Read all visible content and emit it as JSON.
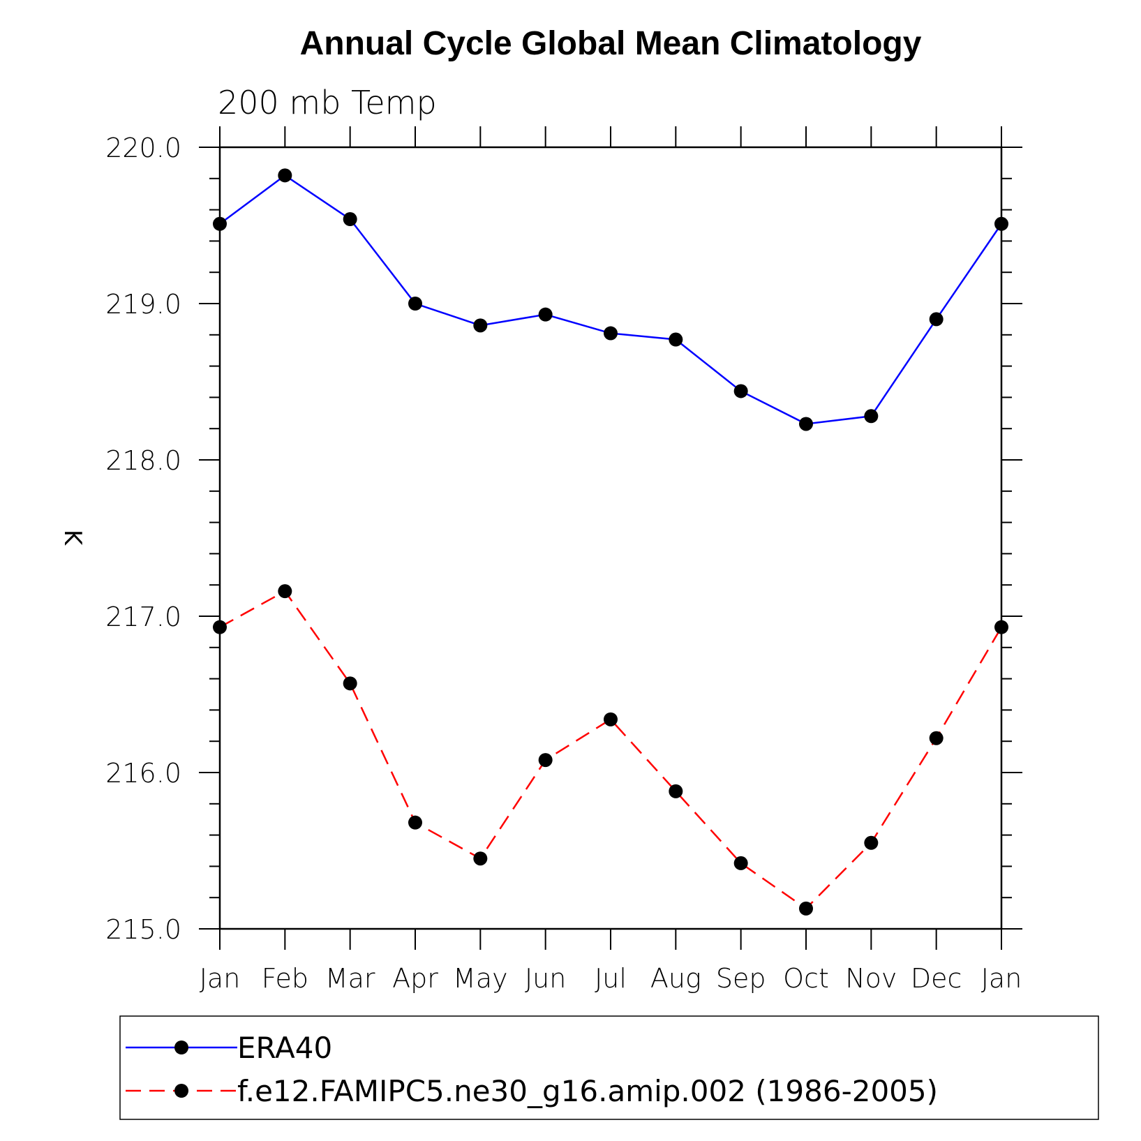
{
  "chart_data": {
    "type": "line",
    "title": "Annual Cycle Global Mean Climatology",
    "subtitle": "200 mb Temp",
    "xlabel": "",
    "ylabel": "K",
    "categories": [
      "Jan",
      "Feb",
      "Mar",
      "Apr",
      "May",
      "Jun",
      "Jul",
      "Aug",
      "Sep",
      "Oct",
      "Nov",
      "Dec",
      "Jan"
    ],
    "ylim": [
      215.0,
      220.0
    ],
    "yticks": [
      "215.0",
      "216.0",
      "217.0",
      "218.0",
      "219.0",
      "220.0"
    ],
    "ytick_values": [
      215.0,
      216.0,
      217.0,
      218.0,
      219.0,
      220.0
    ],
    "grid": false,
    "legend_position": "bottom",
    "series": [
      {
        "name": "ERA40",
        "color": "#0000ff",
        "dashed": false,
        "values": [
          219.51,
          219.82,
          219.54,
          219.0,
          218.86,
          218.93,
          218.81,
          218.77,
          218.44,
          218.23,
          218.28,
          218.9,
          219.51
        ]
      },
      {
        "name": "f.e12.FAMIPC5.ne30_g16.amip.002 (1986-2005)",
        "color": "#ff0000",
        "dashed": true,
        "values": [
          216.93,
          217.16,
          216.57,
          215.68,
          215.45,
          216.08,
          216.34,
          215.88,
          215.42,
          215.13,
          215.55,
          216.22,
          216.93
        ]
      }
    ]
  }
}
